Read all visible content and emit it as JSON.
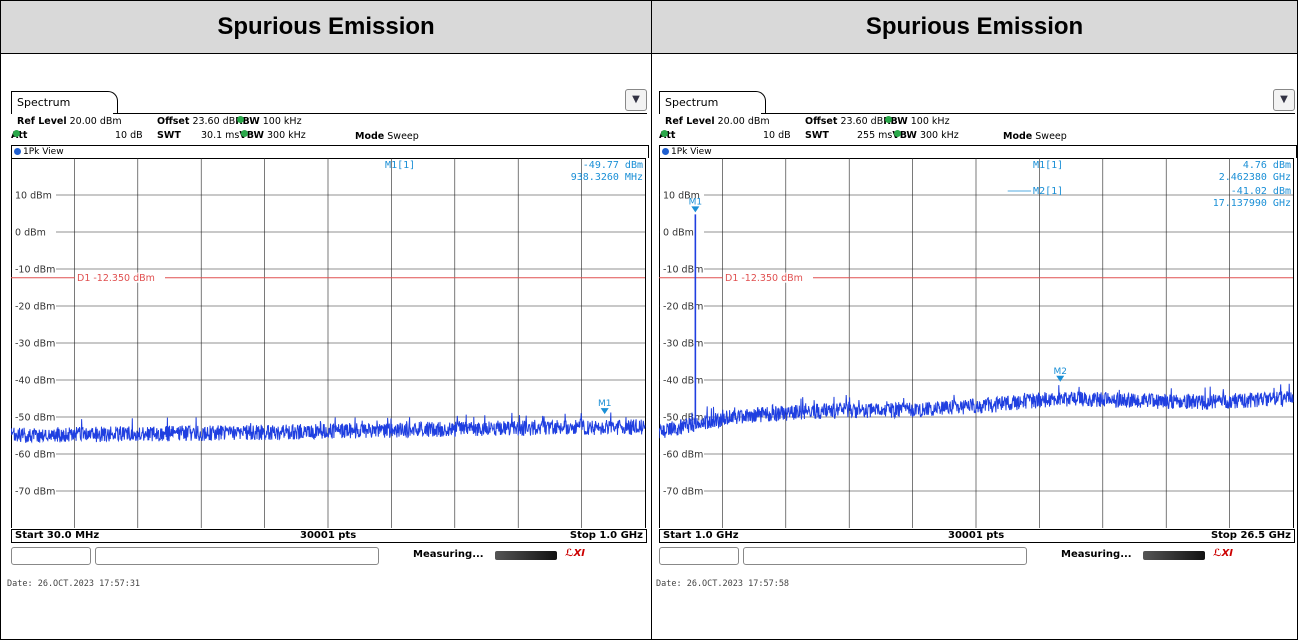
{
  "panels": [
    {
      "heading": "Spurious Emission",
      "tab": "Spectrum",
      "ref_level_label": "Ref Level",
      "ref_level": "20.00 dBm",
      "offset_label": "Offset",
      "offset": "23.60 dB",
      "rbw_label": "RBW",
      "rbw": "100 kHz",
      "att_label": "Att",
      "att": "10 dB",
      "swt_label": "SWT",
      "swt": "30.1 ms",
      "vbw_label": "VBW",
      "vbw": "300 kHz",
      "mode_label": "Mode",
      "mode": "Sweep",
      "view": "1Pk View",
      "start": "Start 30.0 MHz",
      "points": "30001 pts",
      "stop": "Stop 1.0 GHz",
      "status": "Measuring...",
      "date": "Date: 26.OCT.2023  17:57:31",
      "chart_data": {
        "type": "line",
        "x_range": [
          30.0,
          1000.0
        ],
        "x_unit": "MHz",
        "ylim": [
          -80,
          20
        ],
        "y_unit": "dBm",
        "y_ticks": [
          10,
          0,
          -10,
          -20,
          -30,
          -40,
          -50,
          -60,
          -70
        ],
        "y_tick_labels": [
          "10 dBm",
          "0 dBm",
          "-10 dBm",
          "-20 dBm",
          "-30 dBm",
          "-40 dBm",
          "-50 dBm",
          "-60 dBm",
          "-70 dBm"
        ],
        "grid": true,
        "display_line": {
          "label": "D1  -12.350 dBm",
          "value": -12.35,
          "color": "#e05050"
        },
        "trace_color": "#1f3fe0",
        "trace": [
          {
            "x": 30,
            "y": -55.0
          },
          {
            "x": 200,
            "y": -54.6
          },
          {
            "x": 400,
            "y": -54.2
          },
          {
            "x": 600,
            "y": -53.6
          },
          {
            "x": 800,
            "y": -53.0
          },
          {
            "x": 1000,
            "y": -52.7
          }
        ],
        "markers": [
          {
            "name": "M1",
            "x": 938.326,
            "y": -49.77,
            "readout_name": "M1[1]",
            "readout_value": "-49.77 dBm",
            "readout_freq": "938.3260 MHz"
          }
        ]
      }
    },
    {
      "heading": "Spurious Emission",
      "tab": "Spectrum",
      "ref_level_label": "Ref Level",
      "ref_level": "20.00 dBm",
      "offset_label": "Offset",
      "offset": "23.60 dB",
      "rbw_label": "RBW",
      "rbw": "100 kHz",
      "att_label": "Att",
      "att": "10 dB",
      "swt_label": "SWT",
      "swt": "255 ms",
      "vbw_label": "VBW",
      "vbw": "300 kHz",
      "mode_label": "Mode",
      "mode": "Sweep",
      "view": "1Pk View",
      "start": "Start 1.0 GHz",
      "points": "30001 pts",
      "stop": "Stop 26.5 GHz",
      "status": "Measuring...",
      "date": "Date: 26.OCT.2023  17:57:58",
      "chart_data": {
        "type": "line",
        "x_range": [
          1.0,
          26.5
        ],
        "x_unit": "GHz",
        "ylim": [
          -80,
          20
        ],
        "y_unit": "dBm",
        "y_ticks": [
          10,
          0,
          -10,
          -20,
          -30,
          -40,
          -50,
          -60,
          -70
        ],
        "y_tick_labels": [
          "10 dBm",
          "0 dBm",
          "-10 dBm",
          "-20 dBm",
          "-30 dBm",
          "-40 dBm",
          "-50 dBm",
          "-60 dBm",
          "-70 dBm"
        ],
        "grid": true,
        "display_line": {
          "label": "D1  -12.350 dBm",
          "value": -12.35,
          "color": "#e05050"
        },
        "trace_color": "#1f3fe0",
        "trace": [
          {
            "x": 1.0,
            "y": -54.0
          },
          {
            "x": 2.0,
            "y": -52.5
          },
          {
            "x": 4.0,
            "y": -50.0
          },
          {
            "x": 7.0,
            "y": -48.5
          },
          {
            "x": 11.0,
            "y": -48.0
          },
          {
            "x": 14.0,
            "y": -47.0
          },
          {
            "x": 17.0,
            "y": -45.0
          },
          {
            "x": 20.0,
            "y": -45.5
          },
          {
            "x": 23.0,
            "y": -46.0
          },
          {
            "x": 26.5,
            "y": -45.0
          }
        ],
        "spike": {
          "x": 2.46238,
          "y": 4.76
        },
        "markers": [
          {
            "name": "M1",
            "x": 2.46238,
            "y": 4.76,
            "readout_name": "M1[1]",
            "readout_value": "4.76 dBm",
            "readout_freq": "2.462380 GHz"
          },
          {
            "name": "M2",
            "x": 17.13799,
            "y": -41.02,
            "readout_name": "M2[1]",
            "readout_value": "-41.02 dBm",
            "readout_freq": "17.137990 GHz"
          }
        ]
      }
    }
  ]
}
